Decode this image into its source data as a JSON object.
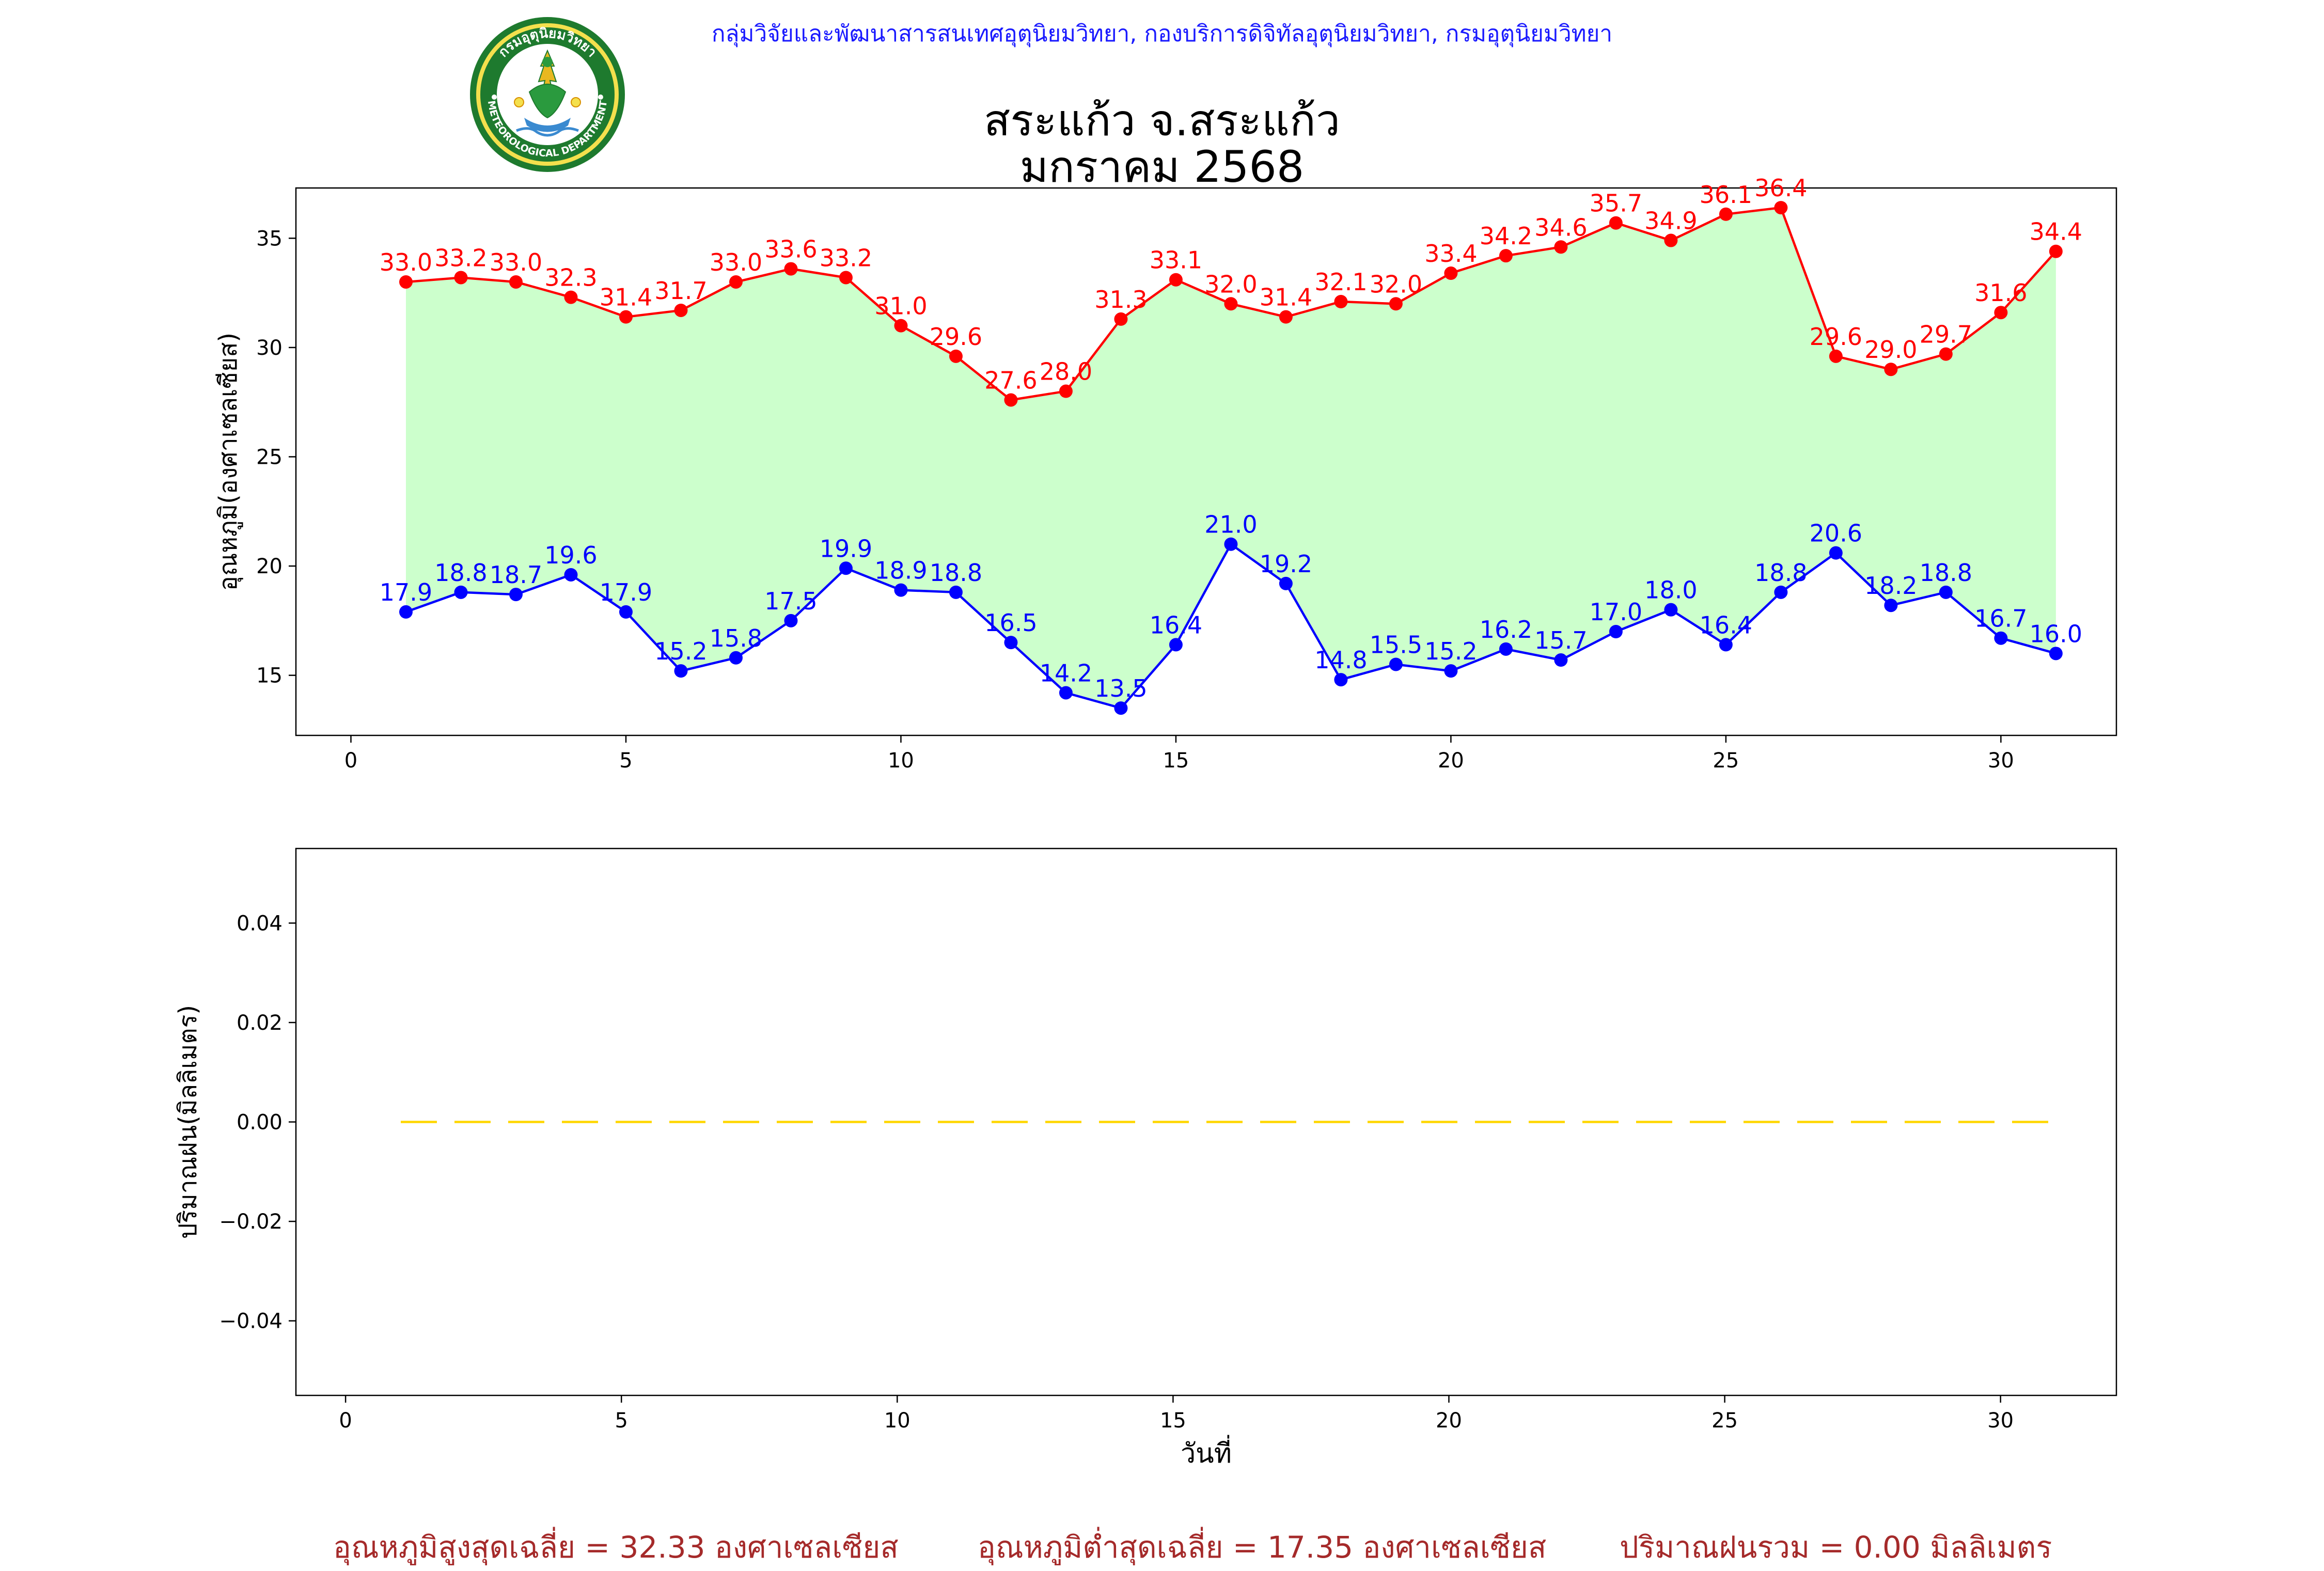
{
  "header": {
    "credit": "กลุ่มวิจัยและพัฒนาสารสนเทศอุตุนิยมวิทยา, กองบริการดิจิทัลอุตุนิยมวิทยา, กรมอุตุนิยมวิทยา",
    "title_line1": "สระแก้ว จ.สระแก้ว",
    "title_line2": "มกราคม 2568",
    "logo_text_top": "กรมอุตุนิยมวิทยา",
    "logo_text_bottom": "METEOROLOGICAL DEPARTMENT"
  },
  "colors": {
    "max_line": "#ff0000",
    "min_line": "#0000ff",
    "band_fill": "#ccffcc",
    "rain_line": "#ffd700",
    "footer_text": "#a52a2a",
    "credit_text": "#1a1aff"
  },
  "chart_data": [
    {
      "type": "line",
      "title": "สระแก้ว จ.สระแก้ว มกราคม 2568",
      "xlabel": "",
      "ylabel": "อุณหภูมิ(องศาเซลเซียส)",
      "xlim": [
        -1,
        32.1
      ],
      "ylim": [
        12.25,
        37.3
      ],
      "xticks": [
        0,
        5,
        10,
        15,
        20,
        25,
        30
      ],
      "yticks": [
        15,
        20,
        25,
        30,
        35
      ],
      "grid": false,
      "fill_between_series": true,
      "x": [
        1,
        2,
        3,
        4,
        5,
        6,
        7,
        8,
        9,
        10,
        11,
        12,
        13,
        14,
        15,
        16,
        17,
        18,
        19,
        20,
        21,
        22,
        23,
        24,
        25,
        26,
        27,
        28,
        29,
        30,
        31
      ],
      "series": [
        {
          "name": "",
          "color": "#ff0000",
          "values": [
            33.0,
            33.2,
            33.0,
            32.3,
            31.4,
            31.7,
            33.0,
            33.6,
            33.2,
            31.0,
            29.6,
            27.6,
            28.0,
            31.3,
            33.1,
            32.0,
            31.4,
            32.1,
            32.0,
            33.4,
            34.2,
            34.6,
            35.7,
            34.9,
            36.1,
            36.4,
            29.6,
            29.0,
            29.7,
            31.6,
            34.4
          ]
        },
        {
          "name": "",
          "color": "#0000ff",
          "values": [
            17.9,
            18.8,
            18.7,
            19.6,
            17.9,
            15.2,
            15.8,
            17.5,
            19.9,
            18.9,
            18.8,
            16.5,
            14.2,
            13.5,
            16.4,
            21.0,
            19.2,
            14.8,
            15.5,
            15.2,
            16.2,
            15.7,
            17.0,
            18.0,
            16.4,
            18.8,
            20.6,
            18.2,
            18.8,
            16.7,
            16.0
          ]
        }
      ]
    },
    {
      "type": "line",
      "title": "",
      "xlabel": "วันที่",
      "ylabel": "ปริมาณฝน(มิลลิเมตร)",
      "xlim": [
        -0.9,
        32.1
      ],
      "ylim": [
        -0.055,
        0.055
      ],
      "xticks": [
        0,
        5,
        10,
        15,
        20,
        25,
        30
      ],
      "yticks": [
        0.04,
        0.02,
        0.0,
        -0.02,
        -0.04
      ],
      "ytick_labels": [
        "0.04",
        "0.02",
        "0.00",
        "−0.02",
        "−0.04"
      ],
      "grid": false,
      "line_style": "dashed",
      "x": [
        1,
        2,
        3,
        4,
        5,
        6,
        7,
        8,
        9,
        10,
        11,
        12,
        13,
        14,
        15,
        16,
        17,
        18,
        19,
        20,
        21,
        22,
        23,
        24,
        25,
        26,
        27,
        28,
        29,
        30,
        31
      ],
      "series": [
        {
          "name": "",
          "color": "#ffd700",
          "values": [
            0,
            0,
            0,
            0,
            0,
            0,
            0,
            0,
            0,
            0,
            0,
            0,
            0,
            0,
            0,
            0,
            0,
            0,
            0,
            0,
            0,
            0,
            0,
            0,
            0,
            0,
            0,
            0,
            0,
            0,
            0
          ]
        }
      ]
    }
  ],
  "footer": {
    "avg_max": "อุณหภูมิสูงสุดเฉลี่ย = 32.33 องศาเซลเซียส",
    "avg_min": "อุณหภูมิต่ำสุดเฉลี่ย = 17.35 องศาเซลเซียส",
    "total_rain": "ปริมาณฝนรวม = 0.00 มิลลิเมตร"
  }
}
